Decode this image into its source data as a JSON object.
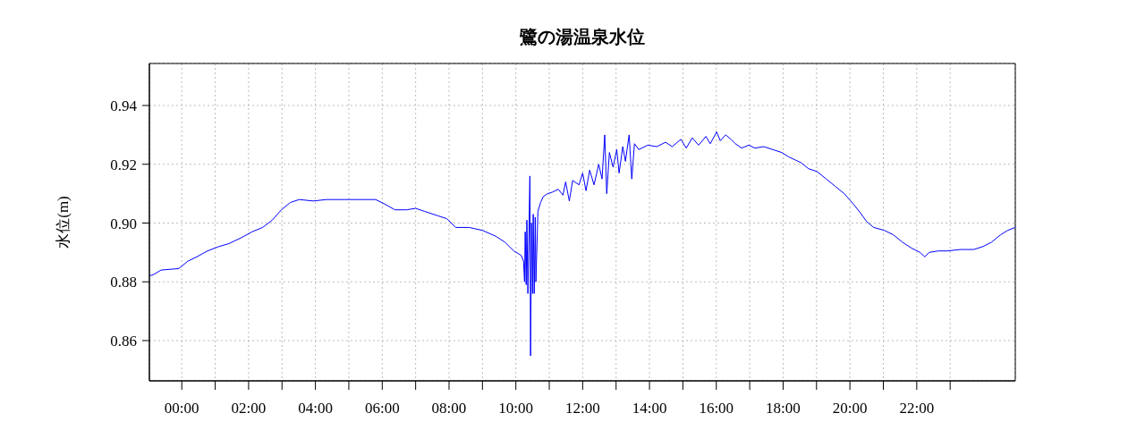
{
  "chart_data": {
    "type": "line",
    "title": "鷺の湯温泉水位",
    "ylabel": "水位(m)",
    "xlim": [
      -0.97,
      24.95
    ],
    "xticks": [
      {
        "value": 0,
        "label": "00:00"
      },
      {
        "value": 1,
        "label": null
      },
      {
        "value": 2,
        "label": "02:00"
      },
      {
        "value": 3,
        "label": null
      },
      {
        "value": 4,
        "label": "04:00"
      },
      {
        "value": 5,
        "label": null
      },
      {
        "value": 6,
        "label": "06:00"
      },
      {
        "value": 7,
        "label": null
      },
      {
        "value": 8,
        "label": "08:00"
      },
      {
        "value": 9,
        "label": null
      },
      {
        "value": 10,
        "label": "10:00"
      },
      {
        "value": 11,
        "label": null
      },
      {
        "value": 12,
        "label": "12:00"
      },
      {
        "value": 13,
        "label": null
      },
      {
        "value": 14,
        "label": "14:00"
      },
      {
        "value": 15,
        "label": null
      },
      {
        "value": 16,
        "label": "16:00"
      },
      {
        "value": 17,
        "label": null
      },
      {
        "value": 18,
        "label": "18:00"
      },
      {
        "value": 19,
        "label": null
      },
      {
        "value": 20,
        "label": "20:00"
      },
      {
        "value": 21,
        "label": null
      },
      {
        "value": 22,
        "label": "22:00"
      },
      {
        "value": 23,
        "label": null
      }
    ],
    "ylim": [
      0.8463,
      0.9543
    ],
    "yticks": [
      {
        "value": 0.86,
        "label": "0.86"
      },
      {
        "value": 0.88,
        "label": "0.88"
      },
      {
        "value": 0.9,
        "label": "0.90"
      },
      {
        "value": 0.92,
        "label": "0.92"
      },
      {
        "value": 0.94,
        "label": "0.94"
      }
    ],
    "grid": true,
    "x": [
      -0.97,
      -0.84,
      -0.62,
      -0.09,
      0.18,
      0.45,
      0.77,
      1.11,
      1.41,
      1.78,
      2.1,
      2.42,
      2.71,
      2.98,
      3.25,
      3.52,
      3.93,
      4.33,
      4.86,
      5.4,
      5.8,
      6.07,
      6.38,
      6.73,
      7.0,
      7.26,
      7.66,
      7.93,
      8.2,
      8.6,
      9.0,
      9.4,
      9.67,
      9.94,
      10.16,
      10.23,
      10.26,
      10.28,
      10.31,
      10.33,
      10.36,
      10.42,
      10.44,
      10.47,
      10.5,
      10.52,
      10.55,
      10.58,
      10.6,
      10.66,
      10.74,
      10.82,
      10.95,
      11.09,
      11.27,
      11.41,
      11.49,
      11.6,
      11.7,
      11.89,
      12.0,
      12.1,
      12.21,
      12.34,
      12.48,
      12.58,
      12.66,
      12.72,
      12.8,
      12.91,
      13.02,
      13.09,
      13.2,
      13.28,
      13.39,
      13.47,
      13.55,
      13.68,
      13.95,
      14.22,
      14.48,
      14.68,
      14.94,
      15.1,
      15.28,
      15.47,
      15.69,
      15.82,
      16.01,
      16.12,
      16.28,
      16.44,
      16.57,
      16.76,
      16.97,
      17.16,
      17.42,
      17.69,
      17.96,
      18.17,
      18.36,
      18.54,
      18.76,
      19.02,
      19.29,
      19.56,
      19.83,
      20.1,
      20.31,
      20.5,
      20.71,
      21.03,
      21.3,
      21.57,
      21.84,
      22.1,
      22.24,
      22.37,
      22.64,
      22.91,
      23.31,
      23.71,
      23.98,
      24.24,
      24.51,
      24.72,
      24.95
    ],
    "series": [
      {
        "color": "#0000ff",
        "values": [
          0.882,
          0.8825,
          0.884,
          0.8845,
          0.887,
          0.8885,
          0.8905,
          0.892,
          0.893,
          0.895,
          0.897,
          0.8985,
          0.901,
          0.9045,
          0.907,
          0.908,
          0.9075,
          0.908,
          0.908,
          0.908,
          0.908,
          0.9065,
          0.9045,
          0.9045,
          0.905,
          0.904,
          0.9025,
          0.9015,
          0.8985,
          0.8985,
          0.8975,
          0.8955,
          0.8935,
          0.8905,
          0.889,
          0.887,
          0.88,
          0.897,
          0.879,
          0.901,
          0.876,
          0.916,
          0.8548,
          0.9,
          0.876,
          0.903,
          0.876,
          0.902,
          0.88,
          0.904,
          0.907,
          0.909,
          0.91,
          0.9105,
          0.9115,
          0.9095,
          0.914,
          0.9075,
          0.9145,
          0.913,
          0.917,
          0.911,
          0.918,
          0.913,
          0.92,
          0.915,
          0.93,
          0.91,
          0.924,
          0.919,
          0.925,
          0.917,
          0.926,
          0.921,
          0.93,
          0.915,
          0.927,
          0.925,
          0.9265,
          0.926,
          0.9275,
          0.926,
          0.9285,
          0.9255,
          0.929,
          0.9265,
          0.9295,
          0.927,
          0.931,
          0.928,
          0.93,
          0.9285,
          0.927,
          0.9255,
          0.9265,
          0.9255,
          0.926,
          0.925,
          0.924,
          0.9225,
          0.9215,
          0.9205,
          0.9185,
          0.9175,
          0.915,
          0.9125,
          0.91,
          0.9065,
          0.9035,
          0.9005,
          0.8985,
          0.8975,
          0.896,
          0.8935,
          0.8915,
          0.89,
          0.8885,
          0.89,
          0.8905,
          0.8905,
          0.891,
          0.891,
          0.892,
          0.8935,
          0.896,
          0.8975,
          0.8985
        ]
      }
    ]
  }
}
